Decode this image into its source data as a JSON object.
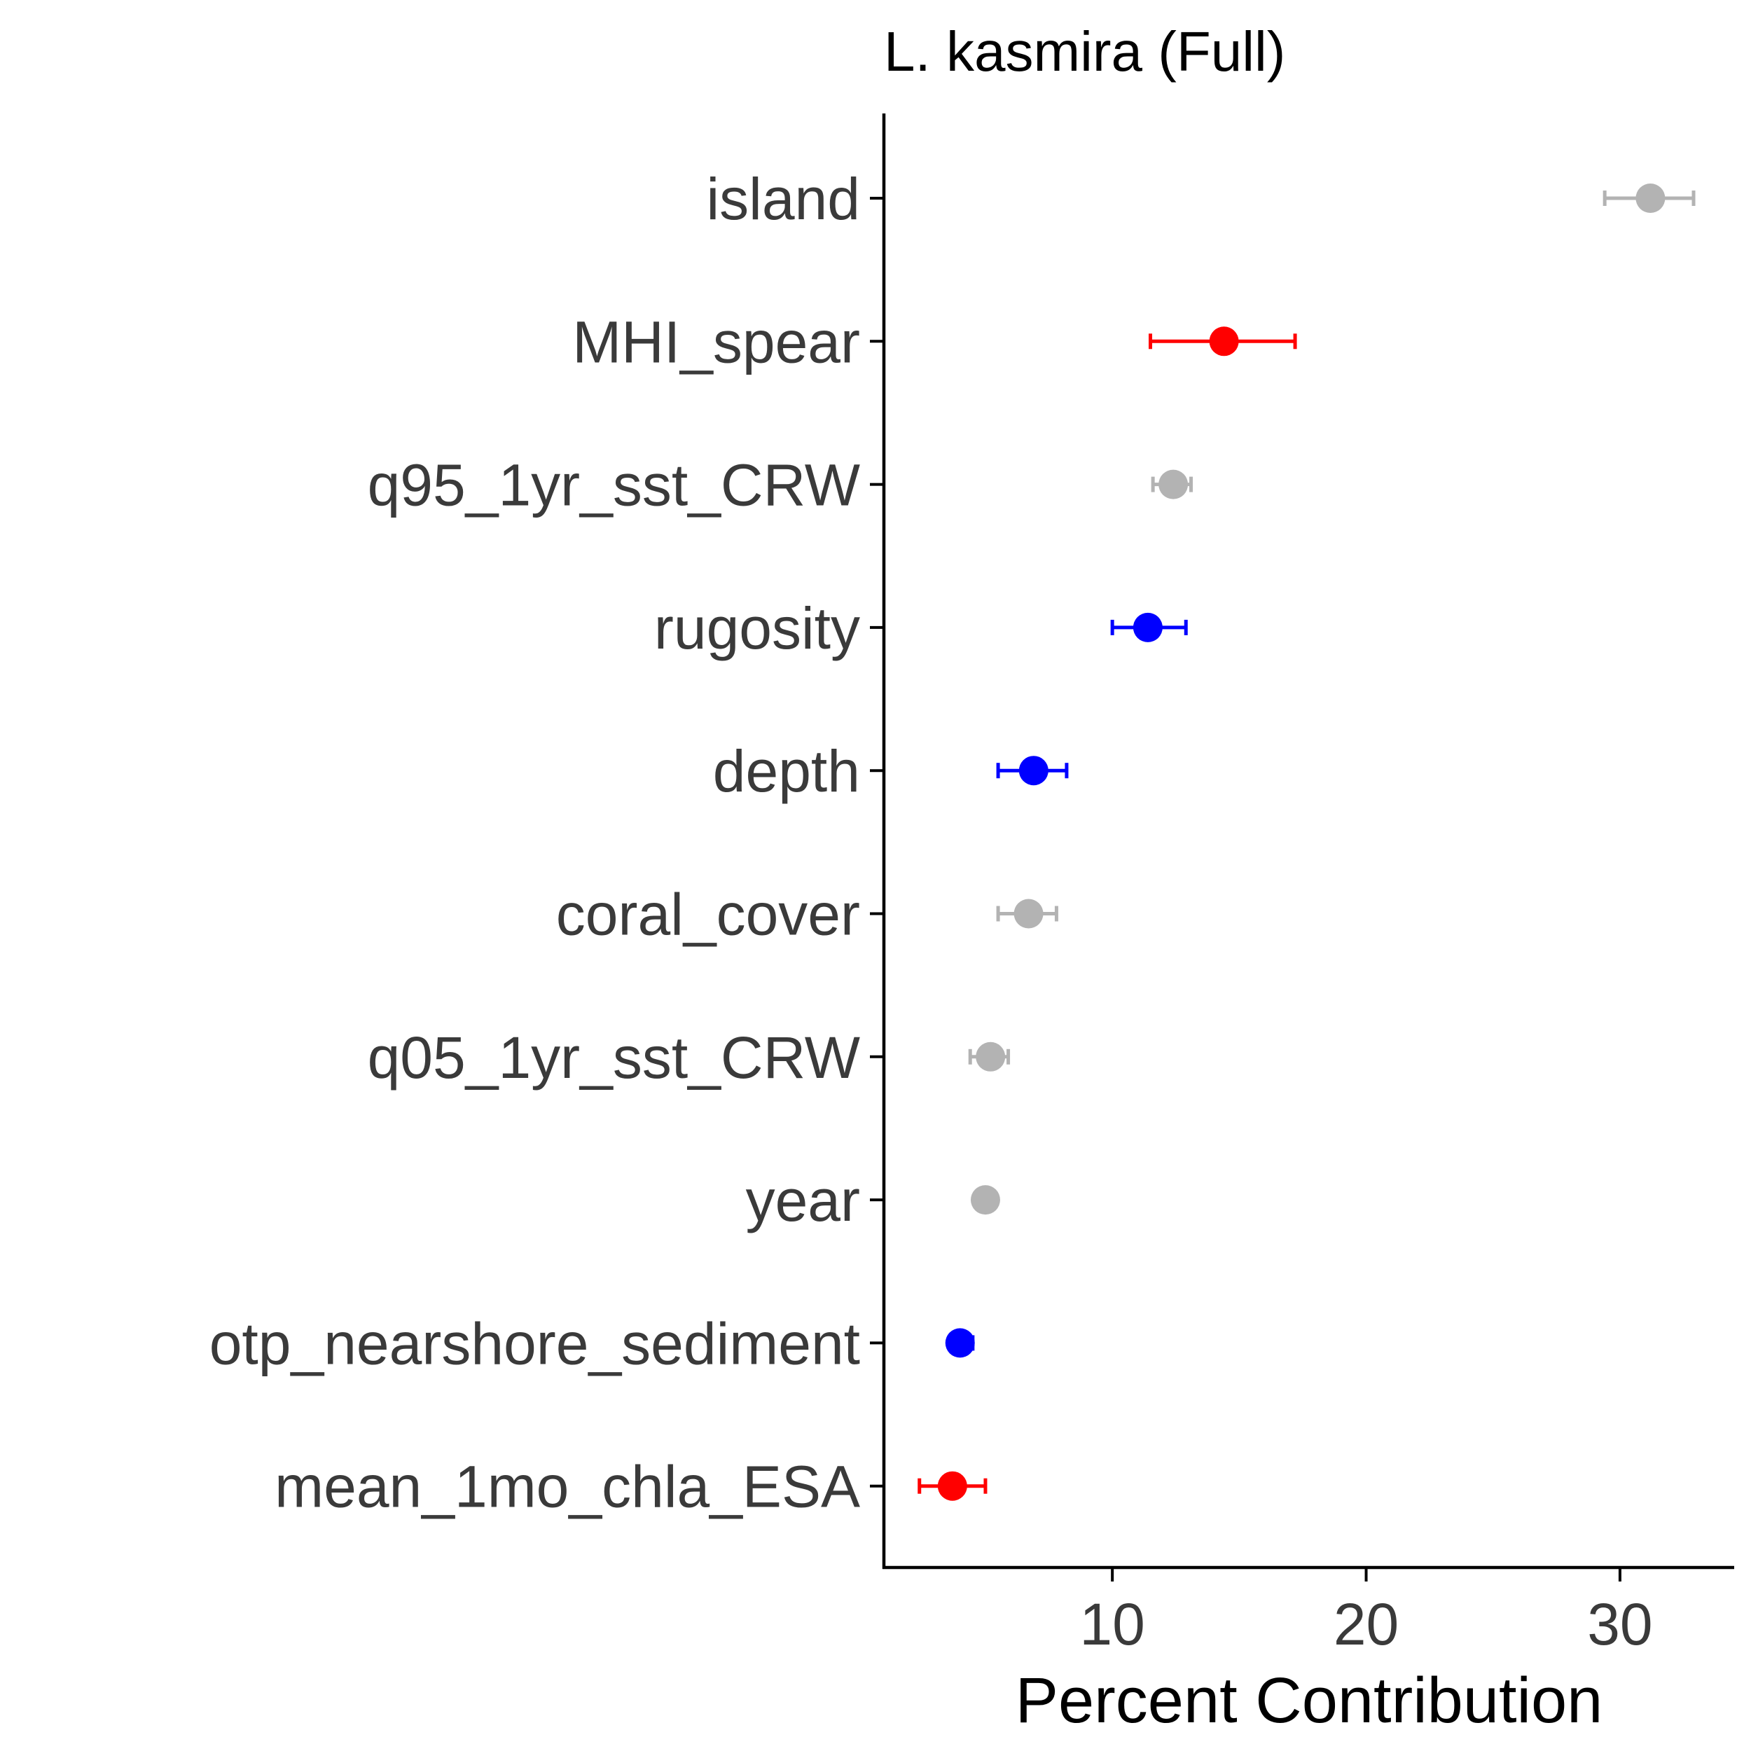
{
  "chart_data": {
    "type": "scatter",
    "title": "L. kasmira (Full)",
    "xlabel": "Percent Contribution",
    "ylabel": "",
    "xlim": [
      1,
      34.5
    ],
    "x_ticks": [
      10,
      20,
      30
    ],
    "x_tick_labels": [
      "10",
      "20",
      "30"
    ],
    "grid": false,
    "legend": "none",
    "colors": {
      "red": "#ff0000",
      "blue": "#0000ff",
      "gray": "#b3b3b3"
    },
    "points": [
      {
        "category": "island",
        "value": 31.2,
        "lower": 29.4,
        "upper": 32.9,
        "color": "gray"
      },
      {
        "category": "MHI_spear",
        "value": 14.4,
        "lower": 11.5,
        "upper": 17.2,
        "color": "red"
      },
      {
        "category": "q95_1yr_sst_CRW",
        "value": 12.4,
        "lower": 11.6,
        "upper": 13.1,
        "color": "gray"
      },
      {
        "category": "rugosity",
        "value": 11.4,
        "lower": 10.0,
        "upper": 12.9,
        "color": "blue"
      },
      {
        "category": "depth",
        "value": 6.9,
        "lower": 5.5,
        "upper": 8.2,
        "color": "blue"
      },
      {
        "category": "coral_cover",
        "value": 6.7,
        "lower": 5.5,
        "upper": 7.8,
        "color": "gray"
      },
      {
        "category": "q05_1yr_sst_CRW",
        "value": 5.2,
        "lower": 4.4,
        "upper": 5.9,
        "color": "gray"
      },
      {
        "category": "year",
        "value": 5.0,
        "lower": 4.9,
        "upper": 5.1,
        "color": "gray"
      },
      {
        "category": "otp_nearshore_sediment",
        "value": 4.0,
        "lower": 3.6,
        "upper": 4.5,
        "color": "blue"
      },
      {
        "category": "mean_1mo_chla_ESA",
        "value": 3.7,
        "lower": 2.4,
        "upper": 5.0,
        "color": "red"
      }
    ]
  }
}
